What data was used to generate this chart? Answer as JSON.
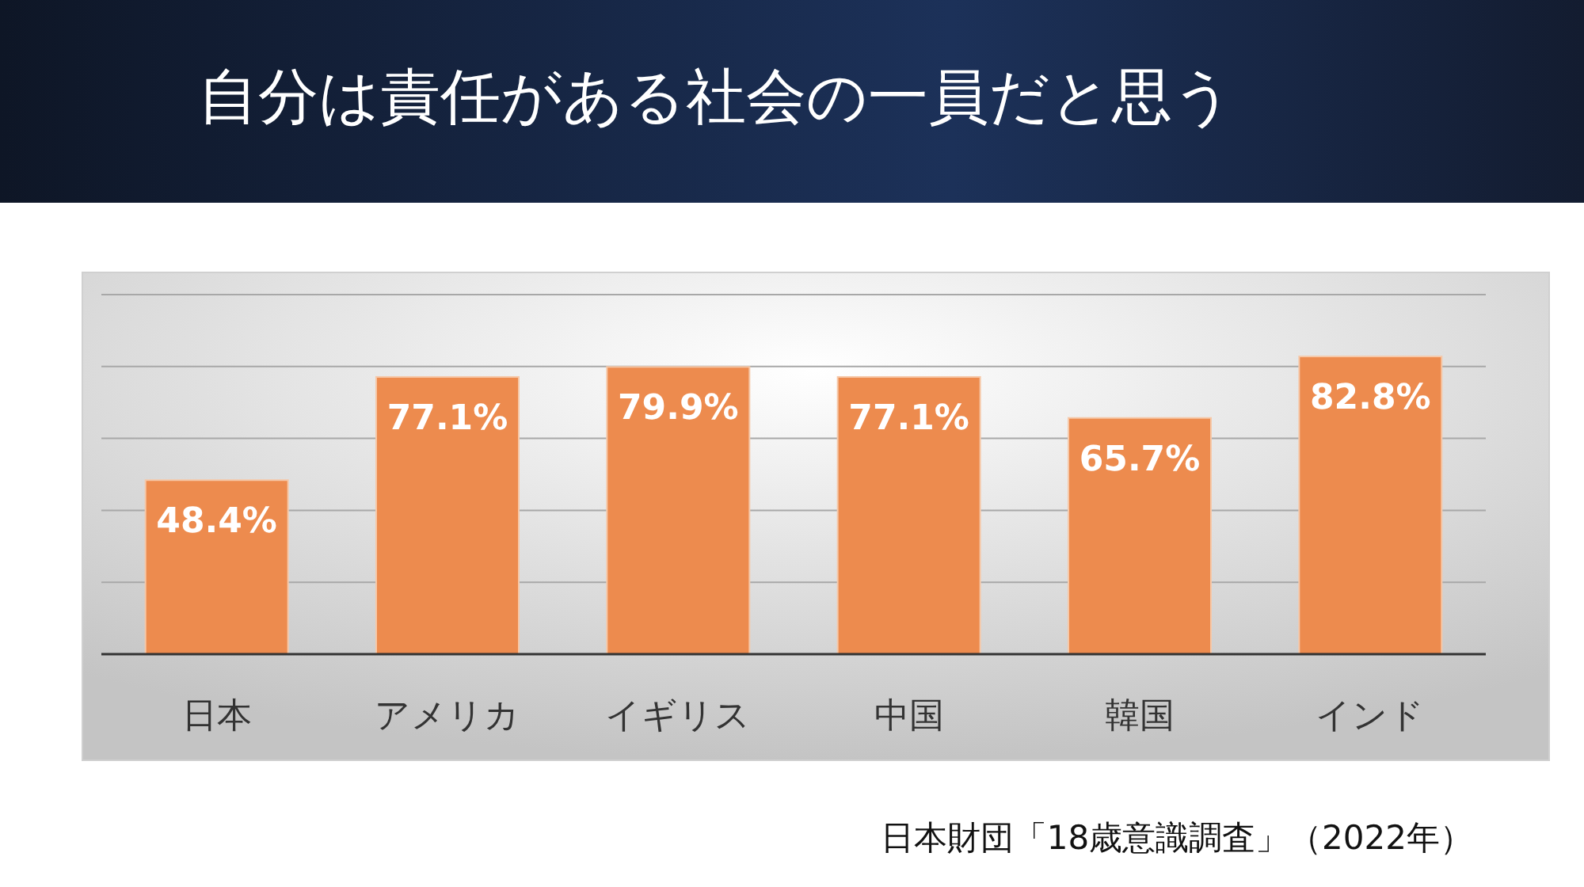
{
  "chart_data": {
    "type": "bar",
    "title": "自分は責任がある社会の一員だと思う",
    "categories": [
      "日本",
      "アメリカ",
      "イギリス",
      "中国",
      "韓国",
      "インド"
    ],
    "values": [
      48.4,
      77.1,
      79.9,
      77.1,
      65.7,
      82.8
    ],
    "value_labels": [
      "48.4%",
      "77.1%",
      "79.9%",
      "77.1%",
      "65.7%",
      "82.8%"
    ],
    "color": "#ed8b4e",
    "ylim": [
      0,
      100
    ],
    "yticks": [
      {
        "value": 0,
        "label": null
      },
      {
        "value": 20,
        "label": null
      },
      {
        "value": 40,
        "label": null
      },
      {
        "value": 60,
        "label": null
      },
      {
        "value": 80,
        "label": null
      },
      {
        "value": 100,
        "label": null
      }
    ],
    "grid": "y",
    "annotations": [
      "日本財団「18歳意識調査」（2022年）"
    ]
  }
}
